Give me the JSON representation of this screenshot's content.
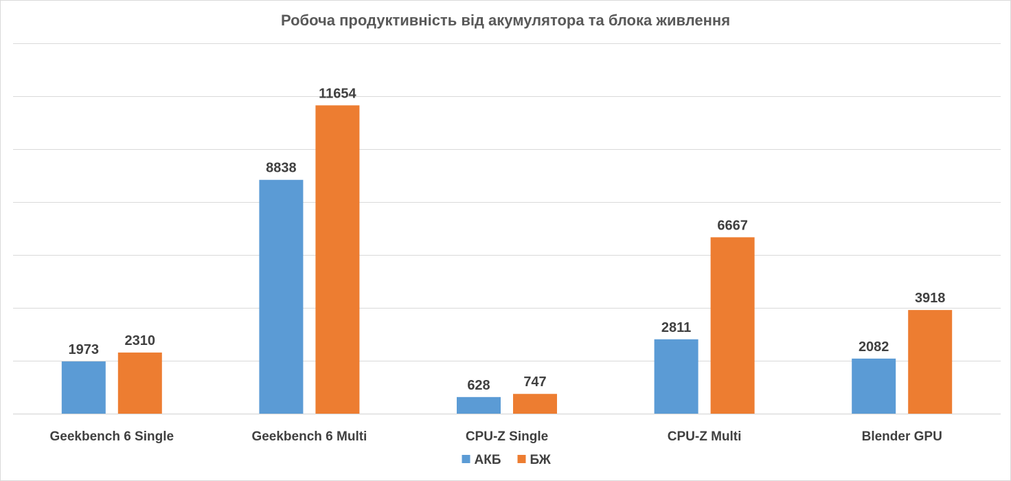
{
  "chart_data": {
    "type": "bar",
    "title": "Робоча продуктивність від акумулятора та блока живлення",
    "categories": [
      "Geekbench 6 Single",
      "Geekbench 6 Multi",
      "CPU-Z Single",
      "CPU-Z Multi",
      "Blender GPU"
    ],
    "series": [
      {
        "name": "АКБ",
        "color": "#5b9bd5",
        "values": [
          1973,
          8838,
          628,
          2811,
          2082
        ]
      },
      {
        "name": "БЖ",
        "color": "#ed7d31",
        "values": [
          2310,
          11654,
          747,
          6667,
          3918
        ]
      }
    ],
    "ylim": [
      0,
      14000
    ],
    "gridline_step": 2000,
    "grid": true,
    "y_axis_labels_visible": false,
    "data_labels": true,
    "legend_position": "bottom-center"
  }
}
